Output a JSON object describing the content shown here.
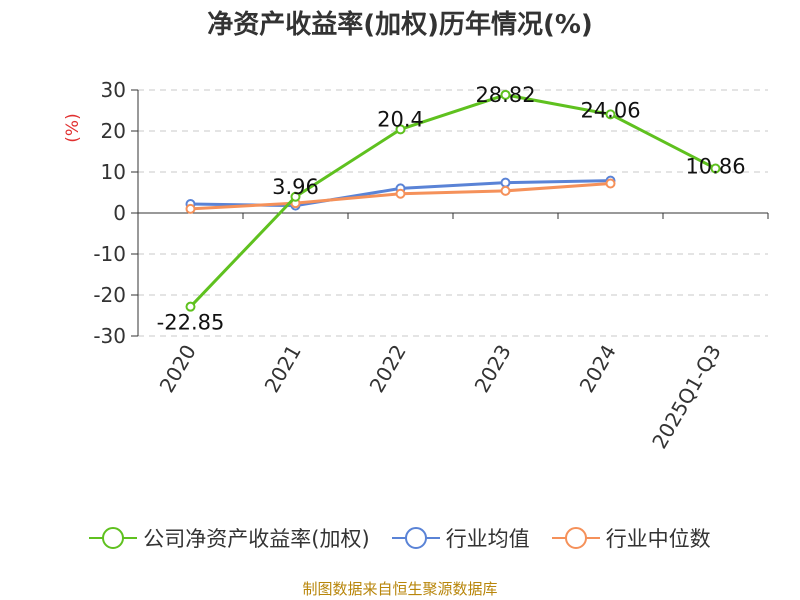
{
  "chart_data": {
    "type": "line",
    "title": "净资产收益率(加权)历年情况(%)",
    "ylabel": "(%)",
    "xlabel": "",
    "ylim": [
      -30,
      30
    ],
    "yticks": [
      30,
      20,
      10,
      0,
      -10,
      -20,
      -30
    ],
    "categories": [
      "2020",
      "2021",
      "2022",
      "2023",
      "2024",
      "2025Q1-Q3"
    ],
    "series": [
      {
        "name": "公司净资产收益率(加权)",
        "color": "#5fc11f",
        "values": [
          -22.85,
          3.96,
          20.4,
          28.82,
          24.06,
          10.86
        ],
        "labels": [
          "-22.85",
          "3.96",
          "20.4",
          "28.82",
          "24.06",
          "10.86"
        ]
      },
      {
        "name": "行业均值",
        "color": "#5a83d6",
        "values": [
          2.2,
          1.8,
          6.0,
          7.4,
          7.9,
          null
        ]
      },
      {
        "name": "行业中位数",
        "color": "#f5915a",
        "values": [
          1.0,
          2.4,
          4.7,
          5.4,
          7.2,
          null
        ]
      }
    ],
    "grid": true,
    "legend_position": "bottom"
  },
  "source": "制图数据来自恒生聚源数据库"
}
